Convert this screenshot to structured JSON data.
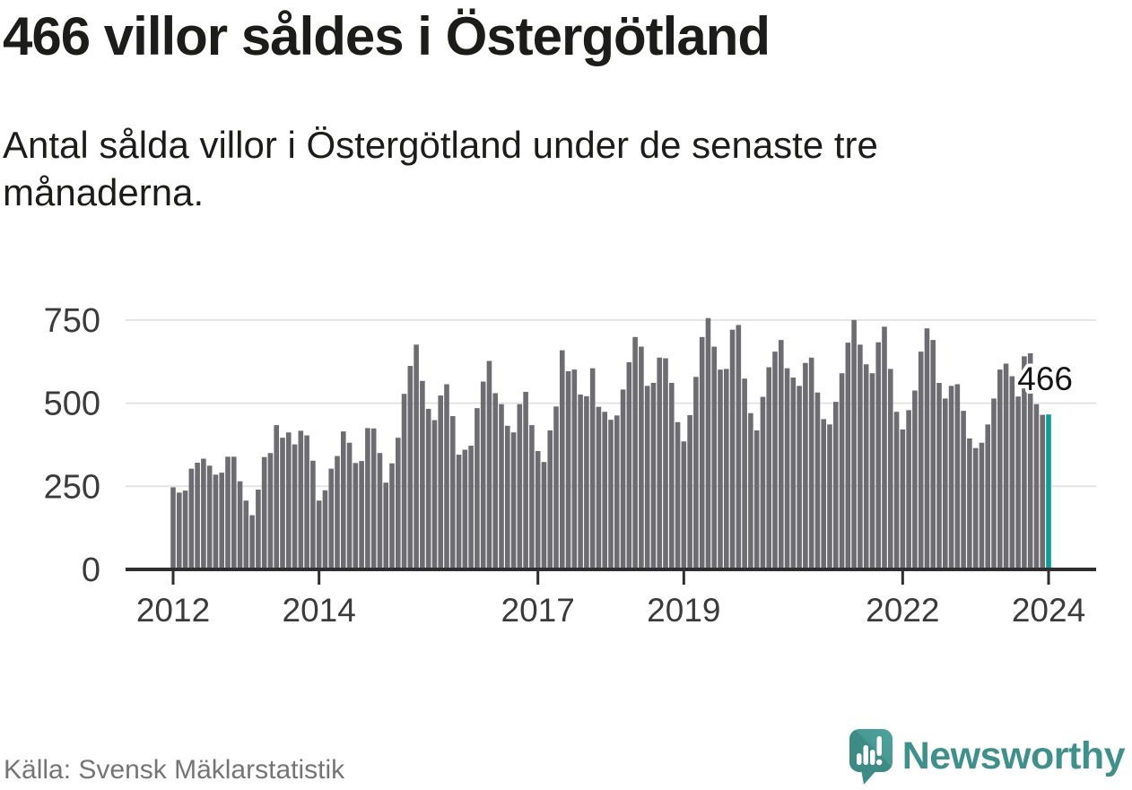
{
  "header": {
    "title": "466 villor såldes i Östergötland",
    "subtitle": "Antal sålda villor i Östergötland under de senaste tre månaderna."
  },
  "chart_data": {
    "type": "bar",
    "title": "466 villor såldes i Östergötland",
    "xlabel": "",
    "ylabel": "",
    "start_month": "2012-01",
    "end_month": "2024-01",
    "ylim": [
      0,
      800
    ],
    "y_ticks": [
      0,
      250,
      500,
      750
    ],
    "grid": "horizontal",
    "x_ticks": [
      {
        "month_index": 0,
        "label": "2012"
      },
      {
        "month_index": 24,
        "label": "2014"
      },
      {
        "month_index": 60,
        "label": "2017"
      },
      {
        "month_index": 84,
        "label": "2019"
      },
      {
        "month_index": 120,
        "label": "2022"
      },
      {
        "month_index": 144,
        "label": "2024"
      }
    ],
    "values": [
      247,
      231,
      237,
      303,
      321,
      333,
      312,
      285,
      291,
      339,
      339,
      265,
      207,
      163,
      240,
      338,
      350,
      434,
      396,
      412,
      376,
      417,
      403,
      327,
      207,
      238,
      303,
      341,
      415,
      381,
      320,
      326,
      425,
      424,
      350,
      261,
      319,
      396,
      528,
      612,
      676,
      567,
      483,
      449,
      523,
      557,
      461,
      345,
      360,
      372,
      485,
      565,
      627,
      530,
      497,
      432,
      412,
      497,
      534,
      434,
      356,
      323,
      418,
      490,
      659,
      596,
      601,
      526,
      521,
      605,
      489,
      474,
      450,
      463,
      541,
      623,
      699,
      670,
      552,
      561,
      637,
      635,
      561,
      443,
      385,
      464,
      579,
      699,
      756,
      670,
      601,
      603,
      721,
      735,
      574,
      470,
      418,
      519,
      608,
      655,
      690,
      605,
      577,
      552,
      621,
      637,
      532,
      452,
      436,
      504,
      590,
      682,
      750,
      676,
      617,
      590,
      683,
      730,
      603,
      474,
      421,
      479,
      538,
      655,
      725,
      690,
      561,
      514,
      552,
      557,
      477,
      394,
      365,
      381,
      436,
      514,
      601,
      619,
      581,
      520,
      641,
      650,
      497,
      465,
      466
    ],
    "highlight": {
      "index": 144,
      "value": 466,
      "label": "466"
    },
    "colors": {
      "bar": "#6d6c71",
      "highlight": "#0b9e96",
      "axis": "#2e2e2e",
      "grid": "#e3e3e3",
      "tick_label": "#3b3b3b",
      "annotation_text": "#141414",
      "annotation_halo": "#ffffff"
    }
  },
  "footer": {
    "source": "Källa: Svensk Mäklarstatistik",
    "brand": "Newsworthy",
    "brand_color": "#3e918b",
    "logo_color": "#479a94",
    "logo_shade": "#3c8b85"
  }
}
